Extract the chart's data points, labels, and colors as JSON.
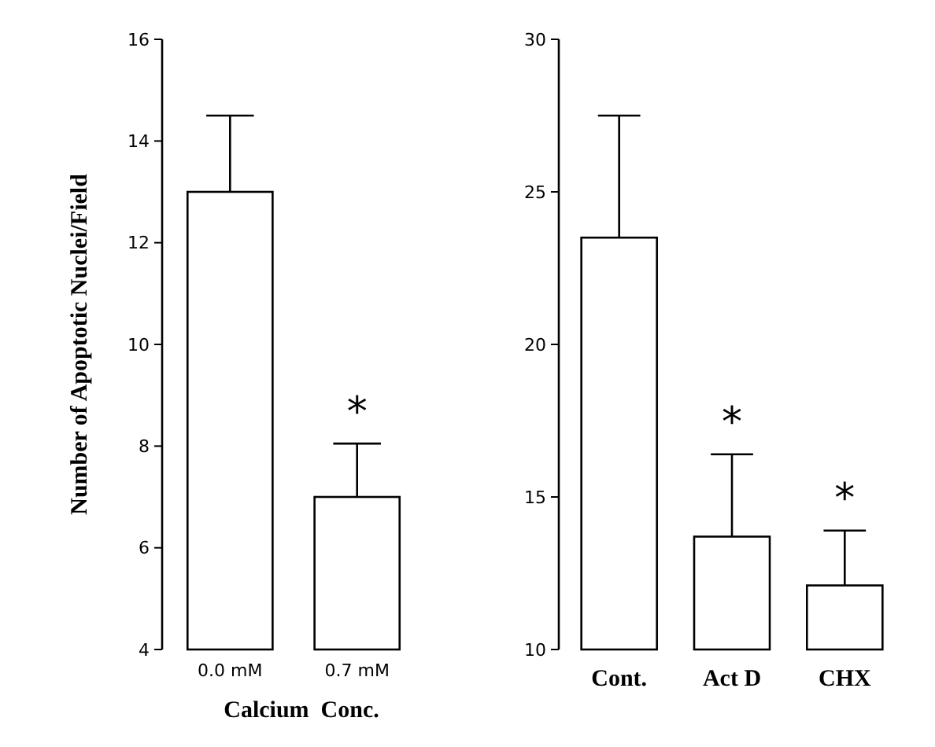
{
  "chart_data": [
    {
      "type": "bar",
      "ylabel": "Number of Apoptotic Nuclei/Field",
      "xlabel": "Calcium  Conc.",
      "categories": [
        "0.0 mM",
        "0.7 mM"
      ],
      "values": [
        13,
        7
      ],
      "errors": [
        [
          13,
          14.5
        ],
        [
          7,
          8.05
        ]
      ],
      "color": "#ffffff",
      "ylim": [
        4,
        16
      ],
      "yticks": [
        4,
        6,
        8,
        10,
        12,
        14,
        16
      ],
      "grid": false,
      "annotations": [
        "*"
      ]
    },
    {
      "type": "bar",
      "categories": [
        "Cont.",
        "Act D",
        "CHX"
      ],
      "values": [
        23.5,
        13.7,
        12.1
      ],
      "errors": [
        [
          23.5,
          27.5
        ],
        [
          13.7,
          16.4
        ],
        [
          12.1,
          13.9
        ]
      ],
      "color": "#ffffff",
      "ylim": [
        10,
        30
      ],
      "yticks": [
        10,
        15,
        20,
        25,
        30
      ],
      "grid": false,
      "annotations": [
        "*",
        "*"
      ]
    }
  ]
}
